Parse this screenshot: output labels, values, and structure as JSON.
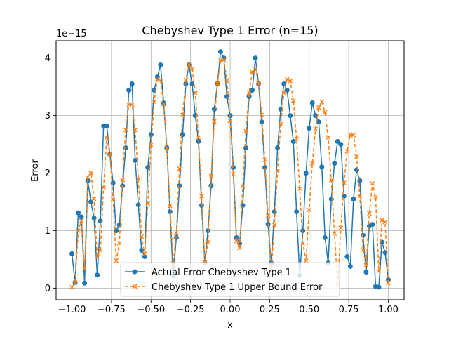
{
  "chart_data": {
    "type": "line",
    "title": "Chebyshev Type 1 Error (n=15)",
    "xlabel": "x",
    "ylabel": "Error",
    "y_offset_text": "1e−15",
    "xlim": [
      -1.1,
      1.1
    ],
    "ylim": [
      -0.2,
      4.3
    ],
    "x_ticks": [
      -1.0,
      -0.75,
      -0.5,
      -0.25,
      0.0,
      0.25,
      0.5,
      0.75,
      1.0
    ],
    "x_tick_labels": [
      "−1.00",
      "−0.75",
      "−0.50",
      "−0.25",
      "0.00",
      "0.25",
      "0.50",
      "0.75",
      "1.00"
    ],
    "y_ticks": [
      0,
      1,
      2,
      3,
      4
    ],
    "y_tick_labels": [
      "0",
      "1",
      "2",
      "3",
      "4"
    ],
    "grid": true,
    "legend_position": "lower-center",
    "x": [
      -1.0,
      -0.98,
      -0.96,
      -0.94,
      -0.92,
      -0.9,
      -0.88,
      -0.86,
      -0.84,
      -0.82,
      -0.8,
      -0.78,
      -0.76,
      -0.74,
      -0.72,
      -0.7,
      -0.68,
      -0.66,
      -0.64,
      -0.62,
      -0.6,
      -0.58,
      -0.56,
      -0.54,
      -0.52,
      -0.5,
      -0.48,
      -0.46,
      -0.44,
      -0.42,
      -0.4,
      -0.38,
      -0.36,
      -0.34,
      -0.32,
      -0.3,
      -0.28,
      -0.26,
      -0.24,
      -0.22,
      -0.2,
      -0.18,
      -0.16,
      -0.14,
      -0.12,
      -0.1,
      -0.08,
      -0.06,
      -0.04,
      -0.02,
      0.0,
      0.02,
      0.04,
      0.06,
      0.08,
      0.1,
      0.12,
      0.14,
      0.16,
      0.18,
      0.2,
      0.22,
      0.24,
      0.26,
      0.28,
      0.3,
      0.32,
      0.34,
      0.36,
      0.38,
      0.4,
      0.42,
      0.44,
      0.46,
      0.48,
      0.5,
      0.52,
      0.54,
      0.56,
      0.58,
      0.6,
      0.62,
      0.64,
      0.66,
      0.68,
      0.7,
      0.72,
      0.74,
      0.76,
      0.78,
      0.8,
      0.82,
      0.84,
      0.86,
      0.88,
      0.9,
      0.92,
      0.94,
      0.96,
      0.98,
      1.0
    ],
    "series": [
      {
        "name": "Actual Error Chebyshev Type 1",
        "color": "#1f77b4",
        "marker": "circle",
        "values": [
          0.6,
          0.1,
          1.31,
          1.24,
          0.09,
          1.87,
          1.5,
          1.22,
          0.23,
          1.17,
          2.82,
          2.82,
          2.33,
          1.83,
          1.0,
          1.1,
          1.78,
          2.44,
          3.44,
          3.55,
          2.22,
          1.45,
          0.66,
          0.55,
          2.1,
          2.67,
          3.44,
          3.67,
          3.88,
          3.22,
          2.44,
          1.33,
          0.22,
          0.88,
          1.78,
          2.67,
          3.55,
          3.88,
          3.55,
          3.0,
          2.55,
          1.44,
          0.44,
          1.0,
          1.78,
          3.11,
          3.55,
          4.11,
          4.0,
          3.33,
          3.0,
          2.1,
          0.88,
          0.78,
          1.44,
          2.44,
          3.33,
          3.44,
          4.0,
          3.55,
          2.89,
          2.1,
          1.11,
          0.44,
          1.33,
          2.44,
          3.11,
          3.55,
          3.44,
          3.0,
          2.55,
          1.33,
          0.22,
          1.0,
          2.0,
          2.78,
          3.22,
          3.0,
          2.89,
          2.11,
          0.88,
          0.44,
          1.55,
          2.17,
          2.55,
          2.5,
          1.6,
          0.55,
          0.38,
          1.55,
          2.06,
          1.87,
          0.92,
          0.28,
          1.08,
          1.11,
          0.03,
          0.02,
          0.8,
          0.62,
          0.15
        ]
      },
      {
        "name": "Chebyshev Type 1 Upper Bound Error",
        "color": "#ff7f0e",
        "marker": "x",
        "values": [
          0.02,
          0.1,
          1.0,
          1.17,
          0.34,
          1.93,
          2.0,
          1.55,
          0.55,
          0.66,
          1.75,
          2.62,
          2.33,
          1.55,
          0.48,
          0.78,
          1.88,
          2.75,
          3.19,
          3.19,
          2.75,
          1.9,
          0.9,
          0.6,
          1.47,
          2.49,
          3.24,
          3.63,
          3.61,
          3.2,
          2.44,
          1.43,
          0.43,
          0.95,
          2.08,
          3.01,
          3.62,
          3.88,
          3.81,
          3.39,
          2.62,
          1.6,
          0.45,
          0.8,
          1.95,
          2.9,
          3.56,
          3.96,
          3.97,
          3.61,
          2.91,
          1.98,
          0.82,
          0.7,
          1.77,
          2.73,
          3.4,
          3.76,
          3.81,
          3.56,
          3.01,
          2.23,
          1.26,
          0.3,
          1.1,
          2.03,
          2.85,
          3.39,
          3.63,
          3.6,
          3.26,
          2.6,
          1.73,
          0.78,
          0.48,
          1.36,
          2.17,
          2.77,
          3.14,
          3.24,
          3.06,
          2.62,
          1.88,
          0.95,
          0.05,
          1.05,
          1.83,
          2.38,
          2.67,
          2.66,
          2.29,
          1.6,
          0.67,
          0.4,
          1.3,
          1.82,
          1.58,
          0.3,
          1.18,
          1.15,
          0.09
        ]
      }
    ]
  }
}
